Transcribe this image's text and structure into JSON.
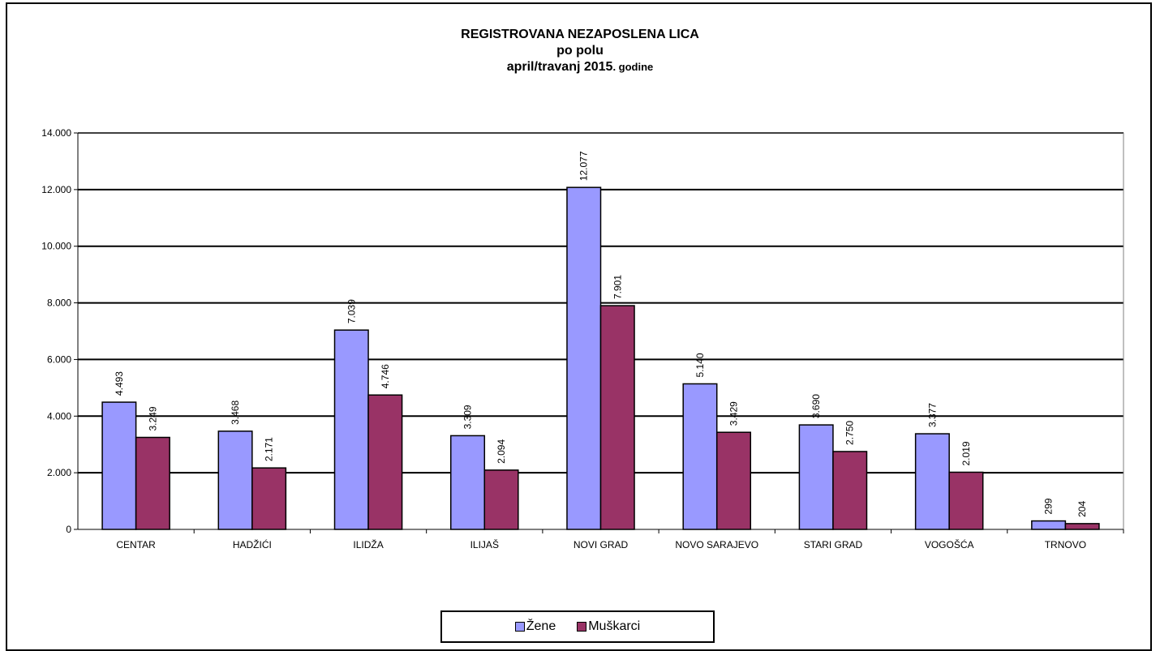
{
  "chart_data": {
    "type": "bar",
    "title_line1": "REGISTROVANA NEZAPOSLENA LICA",
    "title_line2": "po polu",
    "title_line3_main": "april/travanj 2015",
    "title_line3_suffix": ". godine",
    "categories": [
      "CENTAR",
      "HADŽIĆI",
      "ILIDŽA",
      "ILIJAŠ",
      "NOVI GRAD",
      "NOVO SARAJEVO",
      "STARI GRAD",
      "VOGOŠĆA",
      "TRNOVO"
    ],
    "series": [
      {
        "name": "Žene",
        "color": "#9999ff",
        "values": [
          4493,
          3468,
          7039,
          3309,
          12077,
          5140,
          3690,
          3377,
          299
        ],
        "labels": [
          "4.493",
          "3.468",
          "7.039",
          "3.309",
          "12.077",
          "5.140",
          "3.690",
          "3.377",
          "299"
        ]
      },
      {
        "name": "Muškarci",
        "color": "#993366",
        "values": [
          3249,
          2171,
          4746,
          2094,
          7901,
          3429,
          2750,
          2019,
          204
        ],
        "labels": [
          "3.249",
          "2.171",
          "4.746",
          "2.094",
          "7.901",
          "3.429",
          "2.750",
          "2.019",
          "204"
        ]
      }
    ],
    "yticks": [
      "0",
      "2.000",
      "4.000",
      "6.000",
      "8.000",
      "10.000",
      "12.000",
      "14.000"
    ],
    "ylim": [
      0,
      14000
    ],
    "grid": true,
    "legend_position": "bottom"
  }
}
